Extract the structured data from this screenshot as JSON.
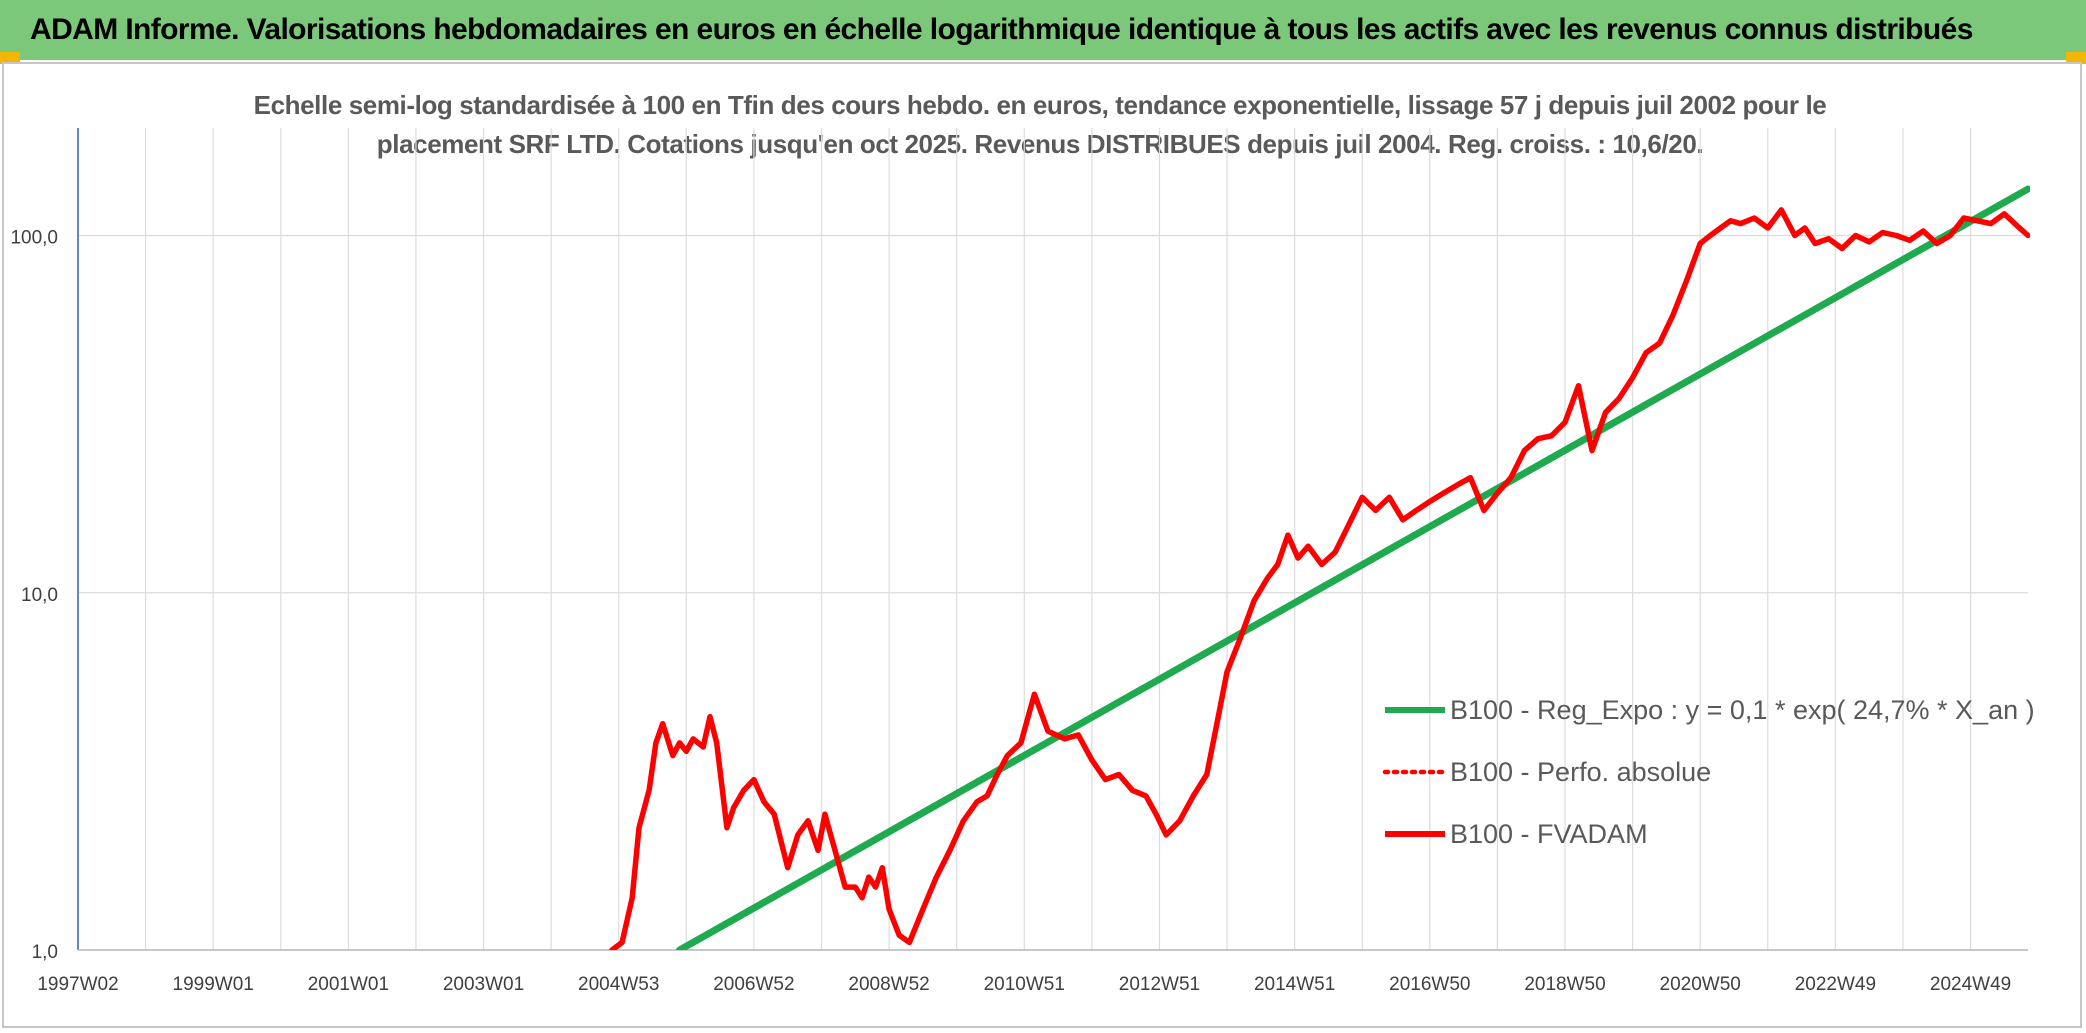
{
  "banner": {
    "title": "ADAM Informe. Valorisations hebdomadaires en euros en échelle logarithmique identique à tous les actifs avec les revenus connus distribués"
  },
  "chart_data": {
    "type": "line",
    "title": "Echelle semi-log standardisée à 100 en Tfin des cours hebdo. en euros, tendance exponentielle, lissage 57 j depuis juil 2002 pour le placement SRF LTD. Cotations jusqu'en oct 2025. Revenus DISTRIBUES depuis juil 2004. Reg. croiss. : 10,6/20.",
    "title_lines": [
      "Echelle semi-log standardisée à 100 en Tfin des cours hebdo. en euros, tendance exponentielle, lissage 57 j depuis juil 2002 pour le",
      "placement SRF LTD. Cotations jusqu'en oct 2025. Revenus DISTRIBUES depuis juil 2004. Reg. croiss. : 10,6/20."
    ],
    "y_scale": "log",
    "ylim": [
      1,
      200
    ],
    "y_ticks": [
      1,
      10,
      100
    ],
    "y_tick_labels": [
      "1,0",
      "10,0",
      "100,0"
    ],
    "xlim": [
      1997.0,
      2025.85
    ],
    "x_ticks": [
      1997.0,
      1999.0,
      2001.0,
      2003.0,
      2005.0,
      2007.0,
      2009.0,
      2011.0,
      2013.0,
      2015.0,
      2017.0,
      2019.0,
      2021.0,
      2023.0,
      2025.0
    ],
    "x_tick_labels": [
      "1997W02",
      "1999W01",
      "2001W01",
      "2003W01",
      "2004W53",
      "2006W52",
      "2008W52",
      "2010W51",
      "2012W51",
      "2014W51",
      "2016W50",
      "2018W50",
      "2020W50",
      "2022W49",
      "2024W49"
    ],
    "grid": true,
    "legend_position": "center-right",
    "series": [
      {
        "name": "B100 - Reg_Expo : y = 0,1 * exp( 24,7% *  X_an )",
        "color": "#1faa4f",
        "style": "solid",
        "x": [
          2005.9,
          2025.85
        ],
        "y": [
          1.0,
          135
        ]
      },
      {
        "name": "B100 - Perfo. absolue",
        "color": "#ff0000",
        "style": "dotted",
        "x": [],
        "y": []
      },
      {
        "name": "B100 - FVADAM",
        "color": "#ff0000",
        "style": "solid",
        "x": [
          2004.9,
          2005.05,
          2005.2,
          2005.3,
          2005.45,
          2005.55,
          2005.65,
          2005.8,
          2005.9,
          2006.0,
          2006.1,
          2006.25,
          2006.35,
          2006.45,
          2006.6,
          2006.7,
          2006.85,
          2007.0,
          2007.15,
          2007.3,
          2007.5,
          2007.65,
          2007.8,
          2007.95,
          2008.05,
          2008.2,
          2008.35,
          2008.5,
          2008.6,
          2008.7,
          2008.8,
          2008.9,
          2009.0,
          2009.15,
          2009.3,
          2009.5,
          2009.7,
          2009.9,
          2010.1,
          2010.3,
          2010.45,
          2010.6,
          2010.75,
          2010.95,
          2011.15,
          2011.35,
          2011.6,
          2011.8,
          2012.0,
          2012.2,
          2012.4,
          2012.6,
          2012.8,
          2012.95,
          2013.1,
          2013.3,
          2013.5,
          2013.7,
          2013.85,
          2014.0,
          2014.2,
          2014.4,
          2014.6,
          2014.75,
          2014.9,
          2015.05,
          2015.2,
          2015.4,
          2015.6,
          2015.8,
          2016.0,
          2016.2,
          2016.4,
          2016.6,
          2016.8,
          2017.0,
          2017.2,
          2017.4,
          2017.6,
          2017.8,
          2018.0,
          2018.2,
          2018.4,
          2018.6,
          2018.8,
          2019.0,
          2019.2,
          2019.4,
          2019.6,
          2019.8,
          2020.0,
          2020.2,
          2020.4,
          2020.6,
          2020.8,
          2021.0,
          2021.15,
          2021.3,
          2021.45,
          2021.6,
          2021.8,
          2022.0,
          2022.2,
          2022.4,
          2022.55,
          2022.7,
          2022.9,
          2023.1,
          2023.3,
          2023.5,
          2023.7,
          2023.9,
          2024.1,
          2024.3,
          2024.5,
          2024.7,
          2024.9,
          2025.1,
          2025.3,
          2025.5,
          2025.7,
          2025.85
        ],
        "y": [
          1.0,
          1.05,
          1.4,
          2.2,
          2.8,
          3.8,
          4.3,
          3.5,
          3.8,
          3.6,
          3.9,
          3.7,
          4.5,
          3.8,
          2.2,
          2.5,
          2.8,
          3.0,
          2.6,
          2.4,
          1.7,
          2.1,
          2.3,
          1.9,
          2.4,
          1.9,
          1.5,
          1.5,
          1.4,
          1.6,
          1.5,
          1.7,
          1.3,
          1.1,
          1.05,
          1.3,
          1.6,
          1.9,
          2.3,
          2.6,
          2.7,
          3.1,
          3.5,
          3.8,
          5.2,
          4.1,
          3.9,
          4.0,
          3.4,
          3.0,
          3.1,
          2.8,
          2.7,
          2.4,
          2.1,
          2.3,
          2.7,
          3.1,
          4.3,
          6.0,
          7.5,
          9.5,
          11.0,
          12.0,
          14.5,
          12.5,
          13.5,
          12.0,
          13.0,
          15.5,
          18.5,
          17.0,
          18.5,
          16.0,
          17.0,
          18.0,
          19.0,
          20.0,
          21.0,
          17.0,
          19.0,
          21.0,
          25.0,
          27.0,
          27.5,
          30.0,
          38.0,
          25.0,
          32.0,
          35.0,
          40.0,
          47.0,
          50.0,
          60.0,
          75.0,
          95.0,
          100.0,
          105.0,
          110.0,
          108.0,
          112.0,
          105.0,
          118.0,
          100.0,
          105.0,
          95.0,
          98.0,
          92.0,
          100.0,
          96.0,
          102.0,
          100.0,
          97.0,
          103.0,
          95.0,
          100.0,
          112.0,
          110.0,
          108.0,
          115.0,
          106.0,
          100.0
        ]
      }
    ]
  }
}
